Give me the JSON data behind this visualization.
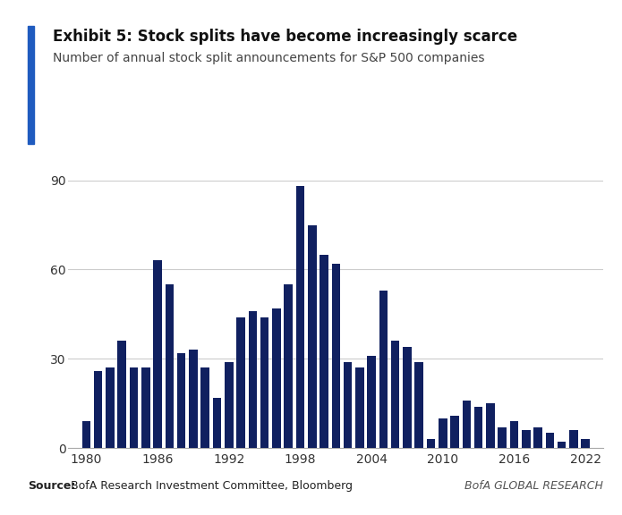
{
  "years": [
    1980,
    1981,
    1982,
    1983,
    1984,
    1985,
    1986,
    1987,
    1988,
    1989,
    1990,
    1991,
    1992,
    1993,
    1994,
    1995,
    1996,
    1997,
    1998,
    1999,
    2000,
    2001,
    2002,
    2003,
    2004,
    2005,
    2006,
    2007,
    2008,
    2009,
    2010,
    2011,
    2012,
    2013,
    2014,
    2015,
    2016,
    2017,
    2018,
    2019,
    2020,
    2021,
    2022
  ],
  "values": [
    9,
    26,
    27,
    36,
    27,
    27,
    63,
    55,
    32,
    33,
    27,
    17,
    29,
    44,
    46,
    44,
    47,
    55,
    88,
    75,
    65,
    62,
    29,
    27,
    31,
    53,
    36,
    34,
    29,
    3,
    10,
    11,
    16,
    14,
    15,
    7,
    9,
    6,
    7,
    5,
    2,
    6,
    3
  ],
  "bar_color": "#102060",
  "title": "Exhibit 5: Stock splits have become increasingly scarce",
  "subtitle": "Number of annual stock split announcements for S&P 500 companies",
  "source_bold": "Source:",
  "source_rest": " BofA Research Investment Committee, Bloomberg",
  "branding": "BofA GLOBAL RESEARCH",
  "ylim": [
    0,
    90
  ],
  "yticks": [
    0,
    30,
    60,
    90
  ],
  "xticks": [
    1980,
    1986,
    1992,
    1998,
    2004,
    2010,
    2016,
    2022
  ],
  "accent_color": "#1f5bbf",
  "bg_color": "#ffffff",
  "grid_color": "#cccccc",
  "title_fontsize": 12,
  "subtitle_fontsize": 10,
  "tick_fontsize": 10,
  "source_fontsize": 9
}
